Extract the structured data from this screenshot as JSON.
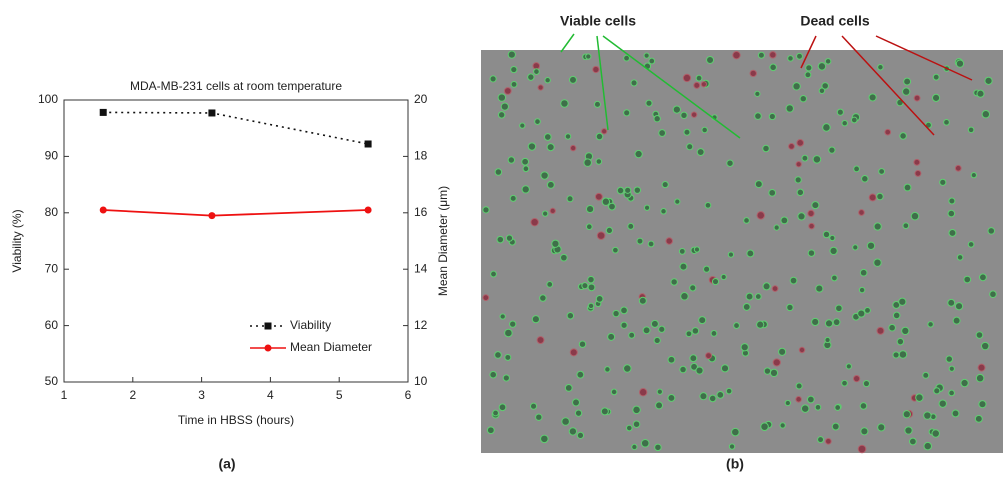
{
  "chart_data": {
    "type": "line",
    "title": "MDA-MB-231 cells at room temperature",
    "x_label": "Time in HBSS (hours)",
    "y_label": "Viability (%)",
    "y2_label": "Mean Diameter (μm)",
    "x": [
      1.57,
      3.15,
      5.42
    ],
    "series": [
      {
        "name": "Viability",
        "color": "#111111",
        "style": "dotted",
        "marker": "square",
        "values": [
          97.8,
          97.7,
          92.2
        ]
      },
      {
        "name": "Mean Diameter",
        "color": "#ee1111",
        "style": "solid",
        "marker": "circle",
        "axis": "y2",
        "values": [
          16.1,
          15.9,
          16.1
        ]
      }
    ],
    "xlim": [
      1,
      6
    ],
    "xticks": [
      1,
      2,
      3,
      4,
      5,
      6
    ],
    "ylim": [
      50,
      100
    ],
    "yticks": [
      50,
      60,
      70,
      80,
      90,
      100
    ],
    "y2lim": [
      10,
      20
    ],
    "y2ticks": [
      10,
      12,
      14,
      16,
      18,
      20
    ],
    "legend": "lower right",
    "grid": false
  },
  "figure": {
    "panels": [
      "(a)",
      "(b)"
    ],
    "annotations": [
      "Viable cells",
      "Dead cells"
    ]
  }
}
